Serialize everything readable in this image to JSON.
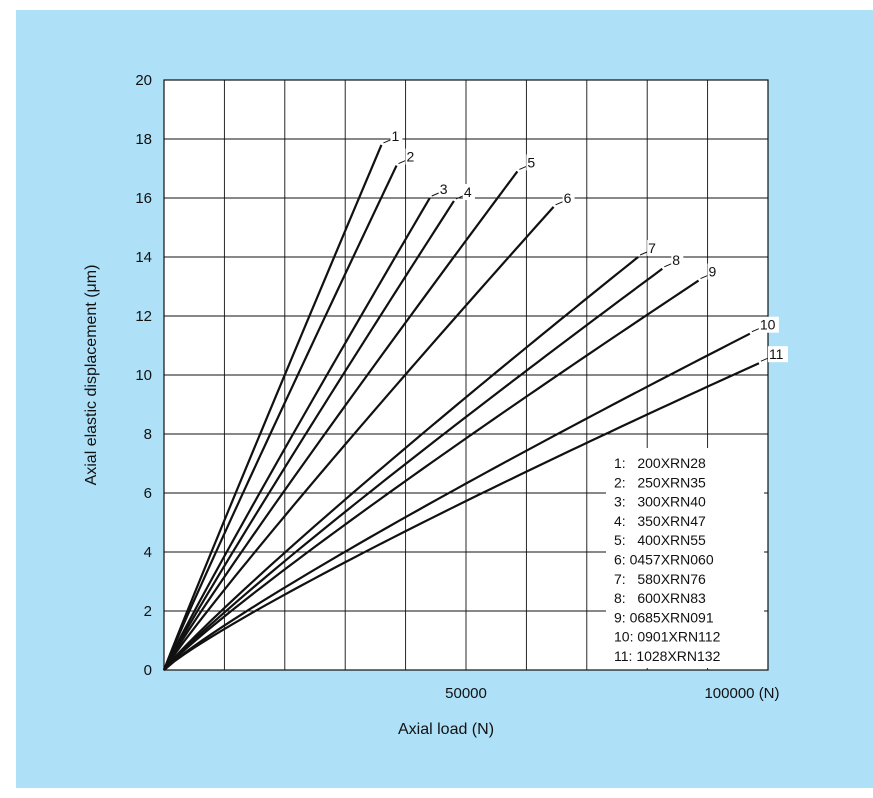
{
  "chart_data": {
    "type": "line",
    "title": "",
    "xlabel": "Axial load (N)",
    "ylabel": "Axial elastic displacement (μm)",
    "xlim": [
      0,
      100000
    ],
    "ylim": [
      0,
      20
    ],
    "x_ticks": [
      {
        "value": 50000,
        "label": "50000"
      },
      {
        "value": 100000,
        "label": "100000 (N)"
      }
    ],
    "y_ticks": [
      {
        "value": 0,
        "label": "0"
      },
      {
        "value": 2,
        "label": "2"
      },
      {
        "value": 4,
        "label": "4"
      },
      {
        "value": 6,
        "label": "6"
      },
      {
        "value": 8,
        "label": "8"
      },
      {
        "value": 10,
        "label": "10"
      },
      {
        "value": 12,
        "label": "12"
      },
      {
        "value": 14,
        "label": "14"
      },
      {
        "value": 16,
        "label": "16"
      },
      {
        "value": 18,
        "label": "18"
      },
      {
        "value": 20,
        "label": "20"
      }
    ],
    "grid": true,
    "grid_x_step": 10000,
    "grid_y_step": 2,
    "legend_position": "bottom-right",
    "series": [
      {
        "name": "200XRN28",
        "label": "1",
        "legend": "1:   200XRN28",
        "end": [
          36000,
          17.8
        ],
        "curvature": 0.98
      },
      {
        "name": "250XRN35",
        "label": "2",
        "legend": "2:   250XRN35",
        "end": [
          38500,
          17.1
        ],
        "curvature": 0.97
      },
      {
        "name": "300XRN40",
        "label": "3",
        "legend": "3:   300XRN40",
        "end": [
          44000,
          16.0
        ],
        "curvature": 0.96
      },
      {
        "name": "350XRN47",
        "label": "4",
        "legend": "4:   350XRN47",
        "end": [
          48000,
          15.9
        ],
        "curvature": 0.96
      },
      {
        "name": "400XRN55",
        "label": "5",
        "legend": "5:   400XRN55",
        "end": [
          58500,
          16.9
        ],
        "curvature": 0.95
      },
      {
        "name": "0457XRN060",
        "label": "6",
        "legend": "6: 0457XRN060",
        "end": [
          64500,
          15.7
        ],
        "curvature": 0.94
      },
      {
        "name": "580XRN76",
        "label": "7",
        "legend": "7:   580XRN76",
        "end": [
          78500,
          14.0
        ],
        "curvature": 0.92
      },
      {
        "name": "600XRN83",
        "label": "8",
        "legend": "8:   600XRN83",
        "end": [
          82500,
          13.6
        ],
        "curvature": 0.92
      },
      {
        "name": "0685XRN091",
        "label": "9",
        "legend": "9: 0685XRN091",
        "end": [
          88500,
          13.2
        ],
        "curvature": 0.91
      },
      {
        "name": "0901XRN112",
        "label": "10",
        "legend": "10: 0901XRN112",
        "end": [
          97000,
          11.4
        ],
        "curvature": 0.89
      },
      {
        "name": "1028XRN132",
        "label": "11",
        "legend": "11: 1028XRN132",
        "end": [
          98500,
          10.4
        ],
        "curvature": 0.88
      }
    ]
  }
}
